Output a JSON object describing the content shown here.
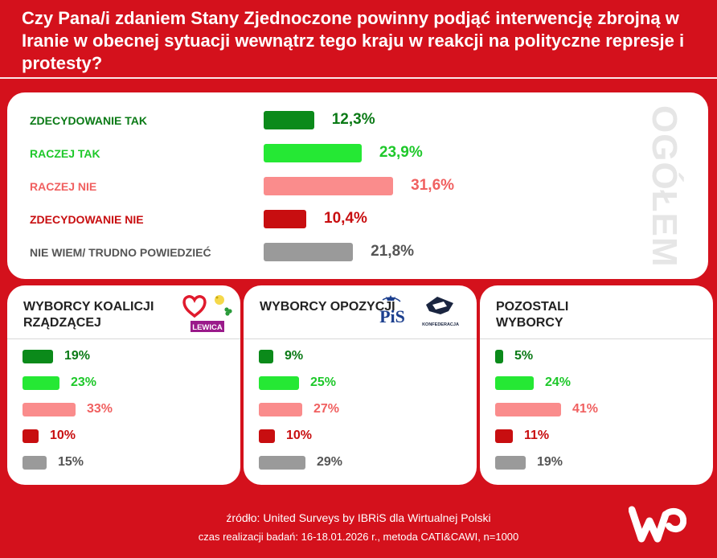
{
  "title": "Czy Pana/i zdaniem Stany Zjednoczone powinny podjąć interwencję zbrojną w Iranie w obecnej sytuacji wewnątrz tego kraju w reakcji na polityczne represje i protesty?",
  "colors": {
    "background": "#d4111c",
    "zdecydowanie_tak": "#0b8a1a",
    "raczej_tak": "#25e834",
    "raczej_nie": "#fa8c8c",
    "zdecydowanie_nie": "#c80e10",
    "nie_wiem": "#9a9a9a"
  },
  "label_colors": [
    "#0b7a16",
    "#1ec82a",
    "#f06060",
    "#c80e10",
    "#555555"
  ],
  "overall_label": "OGÓŁEM",
  "chart_data": [
    {
      "type": "bar",
      "orientation": "horizontal",
      "title": "",
      "categories": [
        "ZDECYDOWANIE TAK",
        "RACZEJ TAK",
        "RACZEJ NIE",
        "ZDECYDOWANIE NIE",
        "NIE WIEM/ TRUDNO POWIEDZIEĆ"
      ],
      "values": [
        12.3,
        23.9,
        31.6,
        10.4,
        21.8
      ],
      "value_labels": [
        "12,3%",
        "23,9%",
        "31,6%",
        "10,4%",
        "21,8%"
      ],
      "xlim": [
        0,
        100
      ]
    },
    {
      "type": "bar",
      "orientation": "horizontal",
      "title": "WYBORCY KOALICJI RZĄDZĄCEJ",
      "categories": [
        "ZDECYDOWANIE TAK",
        "RACZEJ TAK",
        "RACZEJ NIE",
        "ZDECYDOWANIE NIE",
        "NIE WIEM/ TRUDNO POWIEDZIEĆ"
      ],
      "values": [
        19,
        23,
        33,
        10,
        15
      ],
      "value_labels": [
        "19%",
        "23%",
        "33%",
        "10%",
        "15%"
      ],
      "logo_text": [
        "LEWICA"
      ],
      "xlim": [
        0,
        100
      ]
    },
    {
      "type": "bar",
      "orientation": "horizontal",
      "title": "WYBORCY OPOZYCJI",
      "categories": [
        "ZDECYDOWANIE TAK",
        "RACZEJ TAK",
        "RACZEJ NIE",
        "ZDECYDOWANIE NIE",
        "NIE WIEM/ TRUDNO POWIEDZIEĆ"
      ],
      "values": [
        9,
        25,
        27,
        10,
        29
      ],
      "value_labels": [
        "9%",
        "25%",
        "27%",
        "10%",
        "29%"
      ],
      "logo_text": [
        "PiS",
        "KONFEDERACJA"
      ],
      "xlim": [
        0,
        100
      ]
    },
    {
      "type": "bar",
      "orientation": "horizontal",
      "title": "POZOSTALI WYBORCY",
      "categories": [
        "ZDECYDOWANIE TAK",
        "RACZEJ TAK",
        "RACZEJ NIE",
        "ZDECYDOWANIE NIE",
        "NIE WIEM/ TRUDNO POWIEDZIEĆ"
      ],
      "values": [
        5,
        24,
        41,
        11,
        19
      ],
      "value_labels": [
        "5%",
        "24%",
        "41%",
        "11%",
        "19%"
      ],
      "xlim": [
        0,
        100
      ]
    }
  ],
  "footer": {
    "source": "źródło: United Surveys by IBRiS dla Wirtualnej Polski",
    "method": "czas realizacji badań: 16-18.01.2026 r., metoda CATI&CAWI, n=1000"
  },
  "brand_logo": "wp-logo"
}
